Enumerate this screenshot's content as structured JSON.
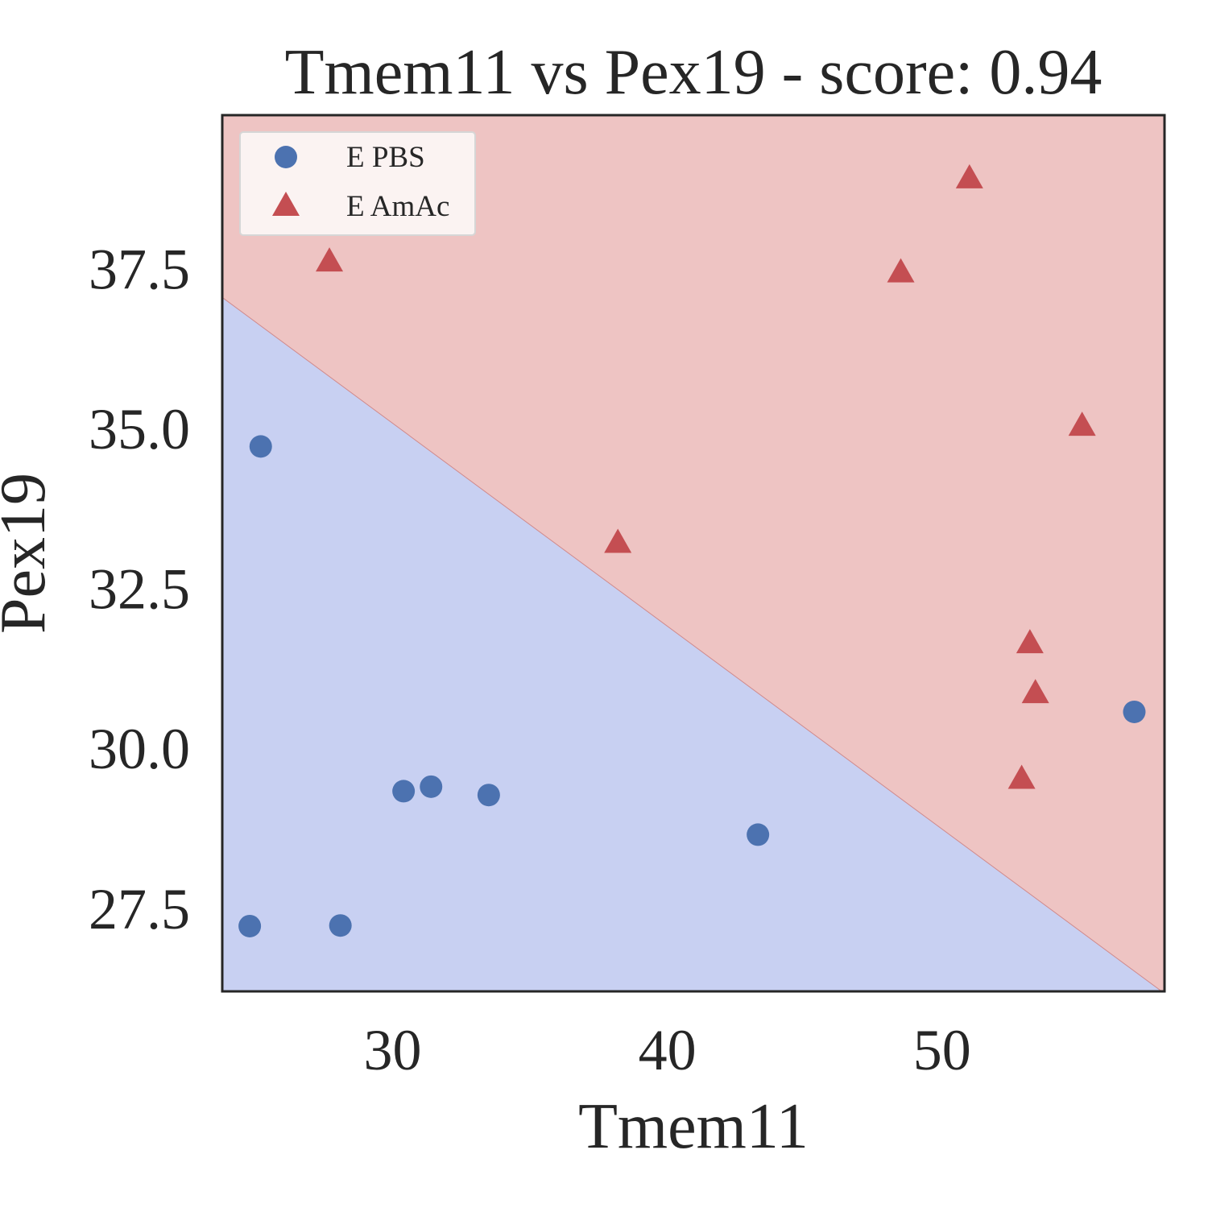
{
  "chart_data": {
    "type": "scatter",
    "title": "Tmem11 vs Pex19 - score: 0.94",
    "xlabel": "Tmem11",
    "ylabel": "Pex19",
    "xlim": [
      23.8,
      58.1
    ],
    "ylim": [
      26.2,
      39.9
    ],
    "xticks": [
      30,
      40,
      50
    ],
    "yticks": [
      27.5,
      30.0,
      32.5,
      35.0,
      37.5
    ],
    "xtick_labels": [
      "30",
      "40",
      "50"
    ],
    "ytick_labels": [
      "27.5",
      "30.0",
      "32.5",
      "35.0",
      "37.5"
    ],
    "grid": false,
    "legend_position": "top-left",
    "decision_boundary": {
      "points": [
        [
          23.8,
          37.05
        ],
        [
          58.0,
          26.2
        ]
      ],
      "below_color": "#c8d0f2",
      "above_color": "#eec4c3",
      "below_class": "E PBS",
      "above_class": "E AmAc"
    },
    "series": [
      {
        "name": "E PBS",
        "marker": "circle",
        "color": "#4c72b0",
        "points": [
          [
            25.2,
            34.72
          ],
          [
            24.8,
            27.22
          ],
          [
            28.1,
            27.23
          ],
          [
            30.4,
            29.33
          ],
          [
            31.4,
            29.4
          ],
          [
            33.5,
            29.27
          ],
          [
            43.3,
            28.65
          ],
          [
            57.0,
            30.57
          ]
        ]
      },
      {
        "name": "E AmAc",
        "marker": "triangle",
        "color": "#c44e52",
        "points": [
          [
            27.7,
            37.62
          ],
          [
            38.2,
            33.22
          ],
          [
            48.5,
            37.45
          ],
          [
            51.0,
            38.92
          ],
          [
            52.9,
            29.53
          ],
          [
            53.2,
            31.65
          ],
          [
            53.4,
            30.87
          ],
          [
            55.1,
            35.05
          ]
        ]
      }
    ]
  }
}
